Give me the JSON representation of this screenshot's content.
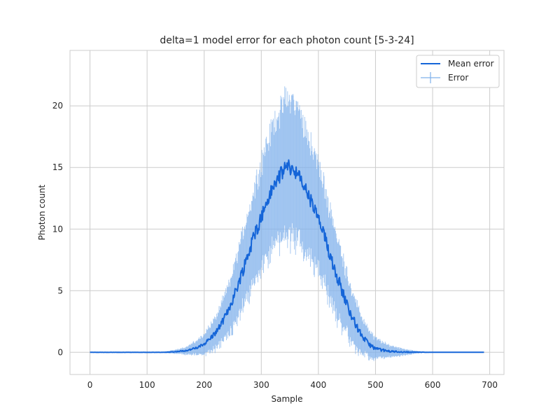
{
  "chart_data": {
    "type": "line",
    "title": "delta=1 model error for each photon count [5-3-24]",
    "xlabel": "Sample",
    "ylabel": "Photon count",
    "xlim": [
      -35,
      725
    ],
    "ylim": [
      -1.8,
      24.5
    ],
    "xticks": [
      0,
      100,
      200,
      300,
      400,
      500,
      600,
      700
    ],
    "yticks": [
      0,
      5,
      10,
      15,
      20
    ],
    "grid": true,
    "legend": {
      "position": "top-right",
      "entries": [
        "Mean error",
        "Error"
      ]
    },
    "x_range": [
      0,
      690
    ],
    "series": [
      {
        "name": "Mean error",
        "kind": "line",
        "color": "#1565d8",
        "points": [
          [
            0,
            0
          ],
          [
            130,
            0
          ],
          [
            150,
            0.05
          ],
          [
            170,
            0.15
          ],
          [
            190,
            0.4
          ],
          [
            200,
            0.7
          ],
          [
            210,
            1.1
          ],
          [
            220,
            1.6
          ],
          [
            230,
            2.3
          ],
          [
            240,
            3.2
          ],
          [
            250,
            4.3
          ],
          [
            260,
            5.6
          ],
          [
            270,
            7.0
          ],
          [
            280,
            8.4
          ],
          [
            290,
            9.8
          ],
          [
            300,
            11.0
          ],
          [
            310,
            12.2
          ],
          [
            320,
            13.3
          ],
          [
            330,
            14.2
          ],
          [
            340,
            14.8
          ],
          [
            345,
            15.2
          ],
          [
            350,
            15.0
          ],
          [
            360,
            14.7
          ],
          [
            370,
            13.9
          ],
          [
            380,
            13.0
          ],
          [
            390,
            11.9
          ],
          [
            400,
            10.8
          ],
          [
            410,
            9.4
          ],
          [
            420,
            8.0
          ],
          [
            430,
            6.6
          ],
          [
            440,
            5.2
          ],
          [
            450,
            3.9
          ],
          [
            460,
            2.8
          ],
          [
            470,
            1.8
          ],
          [
            480,
            1.1
          ],
          [
            490,
            0.6
          ],
          [
            500,
            0.3
          ],
          [
            520,
            0.1
          ],
          [
            550,
            0.02
          ],
          [
            600,
            0
          ],
          [
            690,
            0
          ]
        ]
      },
      {
        "name": "Error",
        "kind": "errorbar",
        "color": "#4a90e2",
        "note": "spread (±) around the mean at each sample",
        "spread": [
          [
            0,
            0
          ],
          [
            130,
            0.05
          ],
          [
            150,
            0.15
          ],
          [
            170,
            0.3
          ],
          [
            190,
            0.6
          ],
          [
            200,
            0.8
          ],
          [
            220,
            1.2
          ],
          [
            240,
            1.8
          ],
          [
            260,
            2.6
          ],
          [
            280,
            3.4
          ],
          [
            300,
            4.2
          ],
          [
            320,
            4.8
          ],
          [
            340,
            5.3
          ],
          [
            350,
            5.4
          ],
          [
            360,
            5.3
          ],
          [
            380,
            4.8
          ],
          [
            400,
            4.2
          ],
          [
            420,
            3.6
          ],
          [
            440,
            2.8
          ],
          [
            460,
            2.0
          ],
          [
            480,
            1.3
          ],
          [
            500,
            0.8
          ],
          [
            520,
            0.5
          ],
          [
            550,
            0.25
          ],
          [
            570,
            0.1
          ],
          [
            600,
            0
          ],
          [
            690,
            0
          ]
        ]
      }
    ]
  }
}
